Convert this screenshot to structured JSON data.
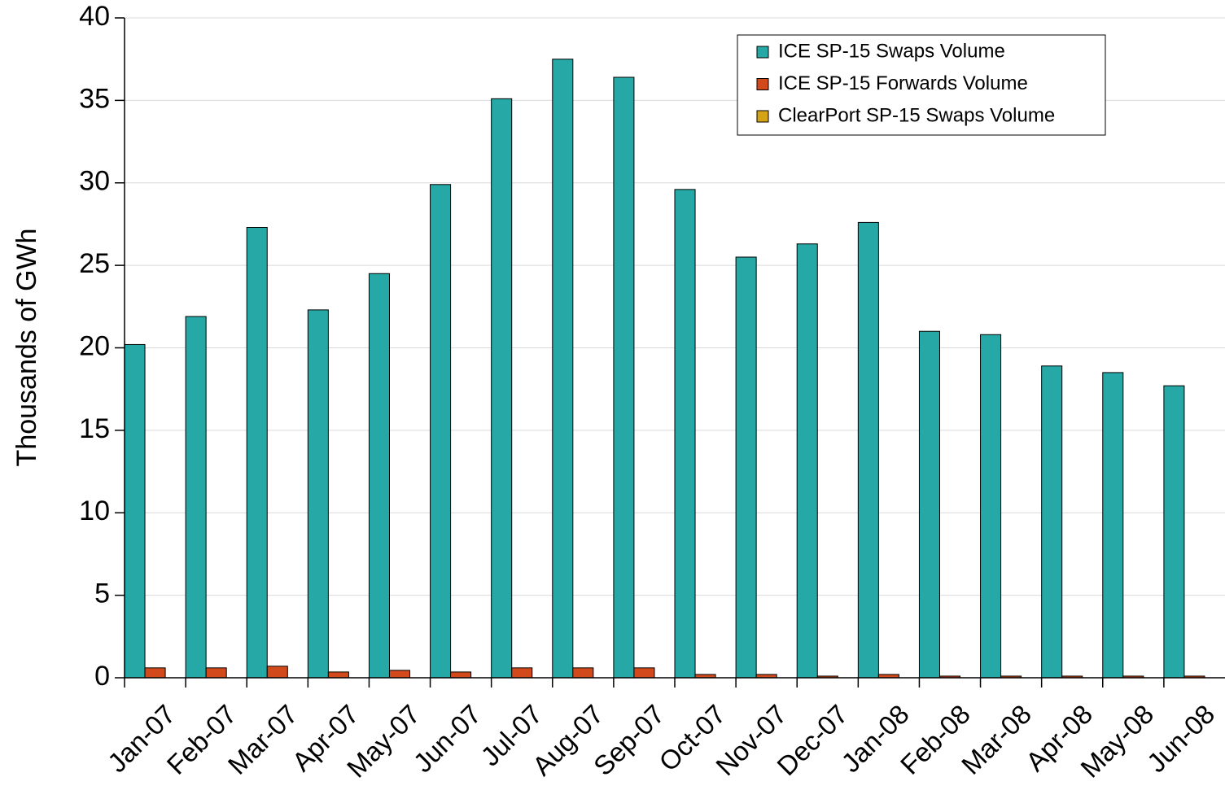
{
  "chart_data": {
    "type": "bar",
    "y_label": "Thousands of GWh",
    "categories": [
      "Jan-07",
      "Feb-07",
      "Mar-07",
      "Apr-07",
      "May-07",
      "Jun-07",
      "Jul-07",
      "Aug-07",
      "Sep-07",
      "Oct-07",
      "Nov-07",
      "Dec-07",
      "Jan-08",
      "Feb-08",
      "Mar-08",
      "Apr-08",
      "May-08",
      "Jun-08"
    ],
    "series": [
      {
        "name": "ICE SP-15 Swaps Volume",
        "color": "#26a9a6",
        "values": [
          20.2,
          21.9,
          27.3,
          22.3,
          24.5,
          29.9,
          35.1,
          37.5,
          36.4,
          29.6,
          25.5,
          26.3,
          27.6,
          21.0,
          20.8,
          18.9,
          18.5,
          17.7
        ]
      },
      {
        "name": "ICE SP-15 Forwards Volume",
        "color": "#d24a1c",
        "values": [
          0.6,
          0.6,
          0.7,
          0.35,
          0.45,
          0.35,
          0.6,
          0.6,
          0.6,
          0.2,
          0.2,
          0.1,
          0.2,
          0.1,
          0.1,
          0.1,
          0.1,
          0.1
        ]
      },
      {
        "name": "ClearPort SP-15 Swaps Volume",
        "color": "#d4a316",
        "values": [
          0,
          0,
          0,
          0,
          0,
          0,
          0,
          0,
          0,
          0,
          0,
          0,
          0,
          0,
          0,
          0,
          0,
          0
        ]
      }
    ],
    "ylim": [
      0,
      40
    ],
    "yticks": [
      0,
      5,
      10,
      15,
      20,
      25,
      30,
      35,
      40
    ],
    "grid": true,
    "legend": "top-right"
  }
}
